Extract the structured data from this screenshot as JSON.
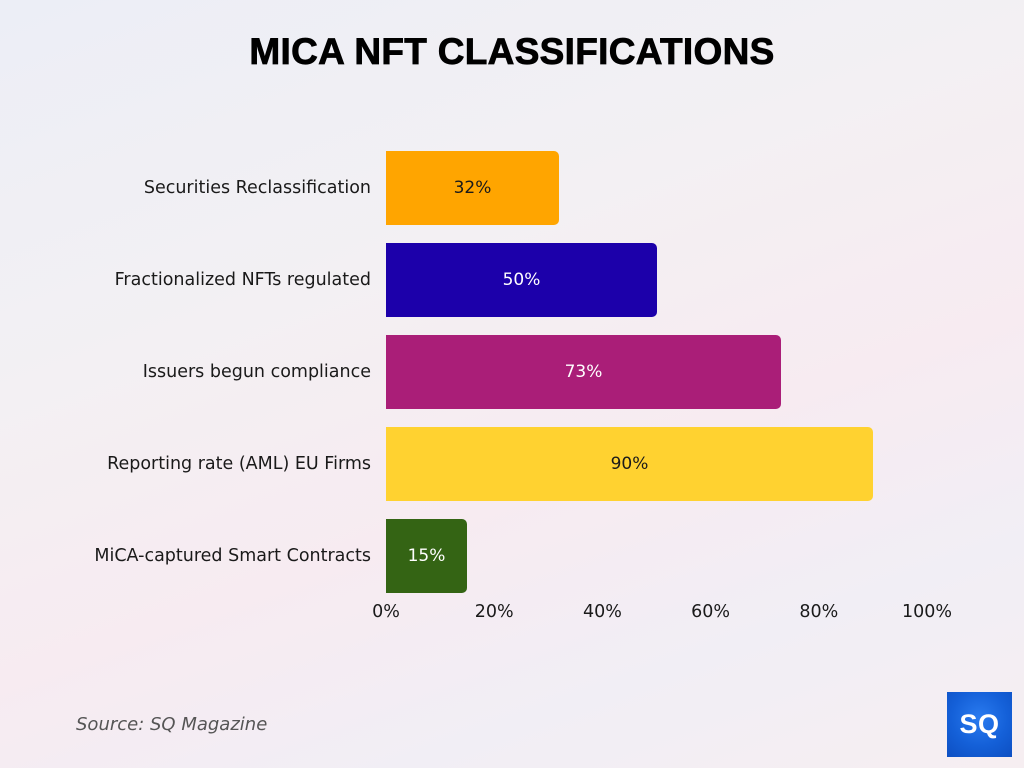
{
  "title": "MICA NFT CLASSIFICATIONS",
  "source": "Source: SQ Magazine",
  "logo": {
    "text": "SQ",
    "color": "#1460d8"
  },
  "bars": [
    {
      "label": "Securities Reclassification",
      "value": 32,
      "display": "32%",
      "color": "#ffa500",
      "text_color": "#1a1a1a"
    },
    {
      "label": "Fractionalized NFTs regulated",
      "value": 50,
      "display": "50%",
      "color": "#1c00aa",
      "text_color": "#ffffff"
    },
    {
      "label": "Issuers begun compliance",
      "value": 73,
      "display": "73%",
      "color": "#aa1e78",
      "text_color": "#ffffff"
    },
    {
      "label": "Reporting rate (AML) EU Firms",
      "value": 90,
      "display": "90%",
      "color": "#ffd230",
      "text_color": "#1a1a1a"
    },
    {
      "label": "MiCA-captured Smart Contracts",
      "value": 15,
      "display": "15%",
      "color": "#346414",
      "text_color": "#ffffff"
    }
  ],
  "axis": {
    "ticks": [
      "0%",
      "20%",
      "40%",
      "60%",
      "80%",
      "100%"
    ]
  },
  "chart_data": {
    "type": "bar",
    "orientation": "horizontal",
    "title": "MICA NFT CLASSIFICATIONS",
    "categories": [
      "Securities Reclassification",
      "Fractionalized NFTs regulated",
      "Issuers begun compliance",
      "Reporting rate (AML) EU Firms",
      "MiCA-captured Smart Contracts"
    ],
    "values": [
      32,
      50,
      73,
      90,
      15
    ],
    "colors": [
      "#ffa500",
      "#1c00aa",
      "#aa1e78",
      "#ffd230",
      "#346414"
    ],
    "data_labels": [
      "32%",
      "50%",
      "73%",
      "90%",
      "15%"
    ],
    "xlabel": "",
    "ylabel": "",
    "xlim": [
      0,
      100
    ],
    "xticks": [
      "0%",
      "20%",
      "40%",
      "60%",
      "80%",
      "100%"
    ],
    "grid": false,
    "legend": null,
    "annotations": [
      "Source: SQ Magazine"
    ]
  }
}
